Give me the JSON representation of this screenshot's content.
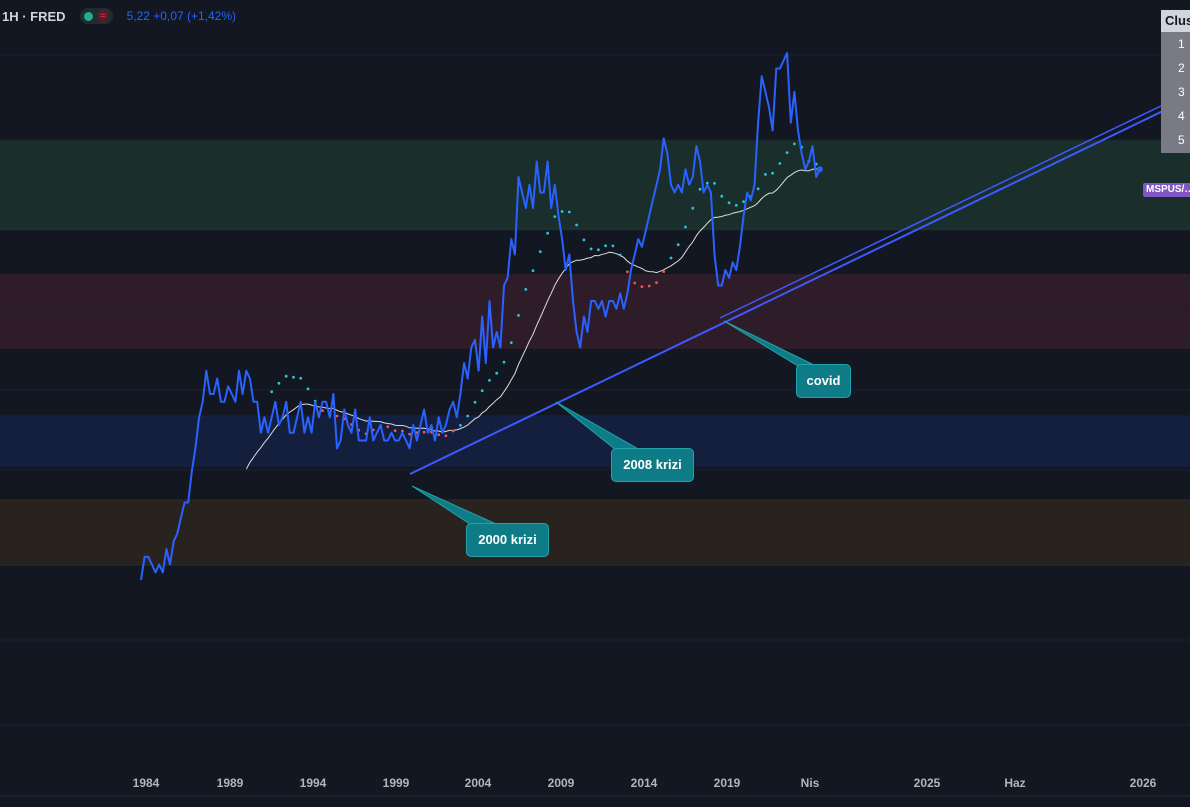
{
  "header": {
    "symbol": "1H · FRED",
    "wave_icon": "≈",
    "quote": "5,22 +0,07 (+1,42%)"
  },
  "price_tag": "MSPUS/…",
  "cluster_panel": {
    "title": "Clus",
    "rows": [
      "1",
      "2",
      "3",
      "4",
      "5"
    ]
  },
  "annotations": [
    "2000 krizi",
    "2008 krizi",
    "covid"
  ],
  "colors": {
    "background": "#131722",
    "price_line": "#2962ff",
    "sma": "#ffffff",
    "trend_up": "#26c6da",
    "trend_down": "#ef5350",
    "trendline": "#3d5afe"
  },
  "chart_data": {
    "type": "line",
    "x_ticks": [
      "1984",
      "1989",
      "1994",
      "1999",
      "2004",
      "2009",
      "2014",
      "2019",
      "Nis",
      "2025",
      "Haz",
      "2026"
    ],
    "zones": [
      {
        "color": "#1e3b30"
      },
      {
        "color": "#3a1f2b"
      },
      {
        "color": "#16234a"
      },
      {
        "color": "#33291f"
      }
    ],
    "series": [
      {
        "values": [
          2.2,
          2.5,
          2.5,
          2.4,
          2.3,
          2.4,
          2.3,
          2.6,
          2.4,
          2.7,
          2.8,
          3.0,
          3.2,
          3.2,
          3.6,
          3.9,
          4.3,
          4.5,
          4.9,
          4.6,
          4.6,
          4.8,
          4.5,
          4.5,
          4.7,
          4.6,
          4.5,
          4.9,
          4.6,
          4.9,
          4.8,
          4.5,
          4.5,
          4.1,
          4.3,
          4.1,
          4.3,
          4.5,
          4.2,
          4.3,
          4.5,
          4.1,
          4.1,
          4.3,
          4.5,
          4.1,
          4.3,
          4.1,
          4.5,
          4.3,
          4.5,
          4.5,
          4.3,
          4.6,
          3.9,
          4.0,
          4.4,
          4.2,
          4.1,
          4.4,
          4.0,
          4.0,
          4.0,
          4.3,
          4.0,
          4.1,
          4.2,
          4.0,
          4.0,
          4.1,
          4.0,
          4.0,
          4.1,
          4.0,
          3.9,
          4.2,
          4.0,
          4.2,
          4.4,
          4.1,
          4.2,
          4.0,
          4.3,
          4.1,
          4.2,
          4.4,
          4.5,
          4.3,
          4.6,
          5.0,
          4.8,
          5.2,
          5.3,
          4.9,
          5.6,
          5.0,
          5.8,
          5.2,
          5.4,
          5.2,
          6.0,
          6.1,
          6.6,
          6.4,
          7.4,
          7.2,
          7.0,
          7.3,
          7.0,
          7.6,
          7.2,
          7.2,
          7.6,
          7.0,
          7.3,
          6.9,
          6.6,
          6.2,
          6.4,
          5.8,
          5.4,
          5.2,
          5.6,
          5.4,
          5.8,
          5.8,
          5.7,
          5.8,
          5.6,
          5.8,
          5.8,
          5.7,
          5.9,
          5.7,
          5.9,
          6.2,
          6.4,
          6.6,
          6.5,
          6.7,
          6.9,
          7.1,
          7.3,
          7.5,
          7.9,
          7.7,
          7.3,
          7.2,
          7.3,
          7.2,
          7.5,
          7.3,
          7.4,
          7.8,
          7.6,
          7.2,
          7.3,
          7.2,
          6.4,
          6.0,
          6.0,
          6.2,
          6.1,
          6.3,
          6.2,
          6.5,
          6.9,
          7.2,
          7.1,
          7.3,
          8.1,
          8.7,
          8.5,
          8.3,
          8.0,
          8.8,
          8.8,
          8.9,
          9.0,
          8.1,
          8.5,
          8.0,
          7.7,
          7.5,
          7.6,
          7.8,
          7.4,
          7.5
        ]
      },
      {
        "values": []
      },
      {
        "values": []
      }
    ]
  }
}
